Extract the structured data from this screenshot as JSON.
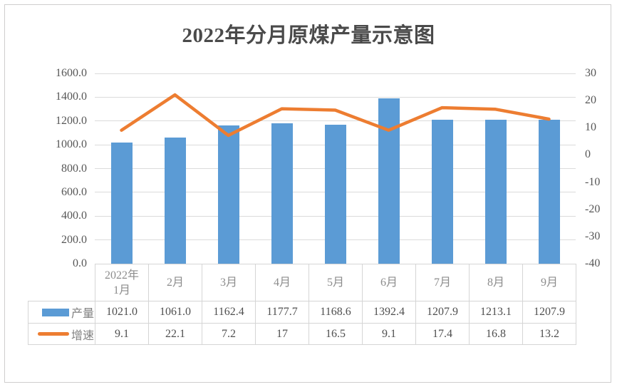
{
  "title": "2022年分月原煤产量示意图",
  "colors": {
    "bar": "#5B9BD5",
    "line": "#ED7D31",
    "gridline": "#DBDBDB",
    "frame_border": "#CFCECE",
    "table_border": "#D5D5D5",
    "title_text": "#4A4A4A",
    "tick_text": "#565656",
    "category_text": "#8C8C8C",
    "value_text": "#4F4F4F",
    "legend_text": "#808080"
  },
  "chart_data": {
    "type": "bar",
    "subtype": "combo-bar-line-dual-axis",
    "title": "2022年分月原煤产量示意图",
    "categories": [
      "2022年\n1月",
      "2月",
      "3月",
      "4月",
      "5月",
      "6月",
      "7月",
      "8月",
      "9月"
    ],
    "series": [
      {
        "name": "产量",
        "type": "bar",
        "axis": "left",
        "color": "#5B9BD5",
        "values": [
          1021.0,
          1061.0,
          1162.4,
          1177.7,
          1168.6,
          1392.4,
          1207.9,
          1213.1,
          1207.9
        ],
        "labels": [
          "1021.0",
          "1061.0",
          "1162.4",
          "1177.7",
          "1168.6",
          "1392.4",
          "1207.9",
          "1213.1",
          "1207.9"
        ]
      },
      {
        "name": "增速",
        "type": "line",
        "axis": "right",
        "color": "#ED7D31",
        "values": [
          9.1,
          22.1,
          7.2,
          17,
          16.5,
          9.1,
          17.4,
          16.8,
          13.2
        ],
        "labels": [
          "9.1",
          "22.1",
          "7.2",
          "17",
          "16.5",
          "9.1",
          "17.4",
          "16.8",
          "13.2"
        ]
      }
    ],
    "left_axis": {
      "min": 0,
      "max": 1600,
      "step": 200,
      "ticks": [
        "1600.0",
        "1400.0",
        "1200.0",
        "1000.0",
        "800.0",
        "600.0",
        "400.0",
        "200.0",
        "0.0"
      ]
    },
    "right_axis": {
      "min": -40,
      "max": 30,
      "step": 10,
      "ticks": [
        "30",
        "20",
        "10",
        "0",
        "-10",
        "-20",
        "-30",
        "-40"
      ]
    },
    "grid": true,
    "legend_position": "data-table-left"
  }
}
